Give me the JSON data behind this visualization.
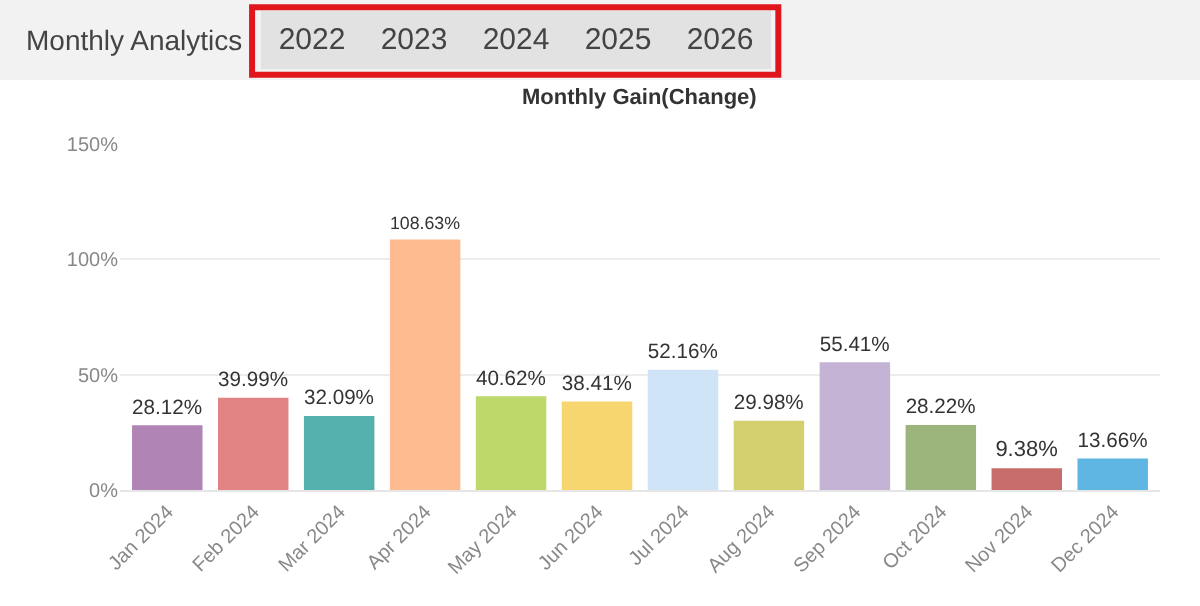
{
  "chart_data": {
    "type": "bar",
    "title": "Monthly Analytics",
    "subtitle": "Monthly Gain(Change)",
    "annotations": [
      "2022",
      "2023",
      "2024",
      "2025",
      "2026"
    ],
    "categories": [
      "Jan 2024",
      "Feb 2024",
      "Mar 2024",
      "Apr 2024",
      "May 2024",
      "Jun 2024",
      "Jul 2024",
      "Aug 2024",
      "Sep 2024",
      "Oct 2024",
      "Nov 2024",
      "Dec 2024"
    ],
    "values": [
      28.12,
      39.99,
      32.09,
      108.63,
      40.62,
      38.41,
      52.16,
      29.98,
      55.41,
      28.22,
      9.38,
      13.66
    ],
    "value_labels": [
      "28.12%",
      "39.99%",
      "32.09%",
      "108.63%",
      "40.62%",
      "38.41%",
      "52.16%",
      "29.98%",
      "55.41%",
      "28.22%",
      "9.38%",
      "13.66%"
    ],
    "colors": [
      "#b084b5",
      "#e28383",
      "#55b1ae",
      "#fdbb8f",
      "#bcd96a",
      "#f7d56f",
      "#cfe5f7",
      "#d3d06d",
      "#c5b3d6",
      "#9bb57c",
      "#c86c6c",
      "#5fb6e2"
    ],
    "ylim": [
      0,
      150
    ],
    "yticks": [
      {
        "value": 0,
        "label": "0%"
      },
      {
        "value": 50,
        "label": "50%"
      },
      {
        "value": 100,
        "label": "100%"
      },
      {
        "value": 150,
        "label": "150%"
      }
    ],
    "grid": "y"
  }
}
